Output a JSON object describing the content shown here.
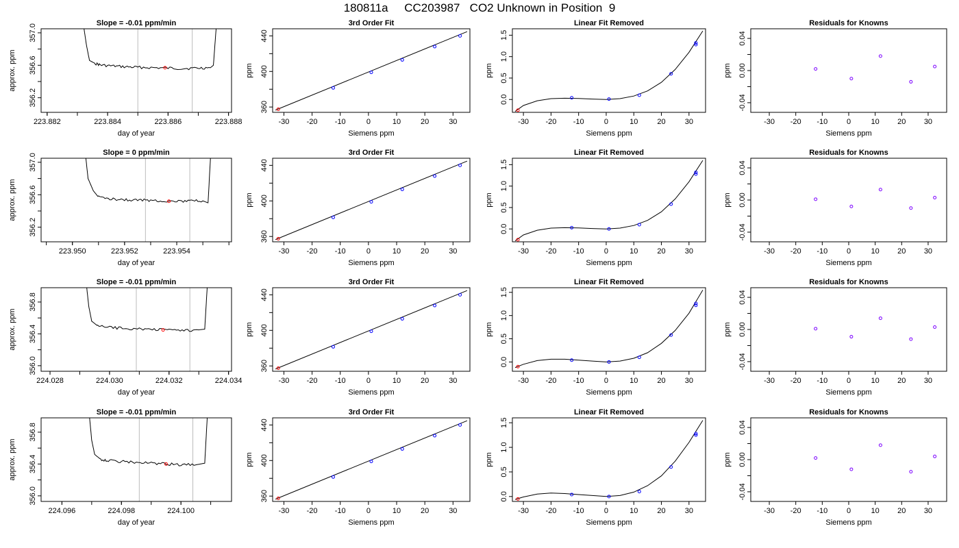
{
  "figure_title": "180811a     CC203987   CO2 Unknown in Position  9",
  "colors": {
    "line": "#000000",
    "vline": "#bbbbbb",
    "red_point": "#ff0000",
    "blue_point": "#0000ff",
    "resid_point": "#7b00ff"
  },
  "chart_data": [
    {
      "type": "line",
      "panel": "timeseries",
      "title": "Slope =  -0.01  ppm/min",
      "xlabel": "day of year",
      "ylabel": "approx. ppm",
      "xlim": [
        223.8818,
        223.8881
      ],
      "ylim": [
        356.02,
        357.05
      ],
      "xticks": [
        "223.882",
        "223.884",
        "223.886",
        "223.888"
      ],
      "yticks": [
        "356.2",
        "356.6",
        "357.0"
      ],
      "ytick_values": [
        356.2,
        356.6,
        357.0
      ],
      "vlines": [
        223.885,
        223.8868
      ],
      "series": [
        {
          "x": [
            223.8832,
            223.8833,
            223.8834,
            223.8836,
            223.8838,
            223.8842,
            223.8846,
            223.885,
            223.8855,
            223.886,
            223.8865,
            223.887,
            223.8874,
            223.8875,
            223.8876
          ],
          "y": [
            357.1,
            356.85,
            356.66,
            356.62,
            356.6,
            356.59,
            356.58,
            356.575,
            356.57,
            356.565,
            356.56,
            356.565,
            356.57,
            356.6,
            357.1
          ]
        }
      ],
      "red_point": [
        223.8859,
        356.57
      ]
    },
    {
      "type": "scatter",
      "panel": "fit",
      "title": "3rd Order Fit",
      "xlabel": "Siemens ppm",
      "ylabel": "ppm",
      "xlim": [
        -34,
        36
      ],
      "ylim": [
        354,
        448
      ],
      "xticks": [
        "-30",
        "-20",
        "-10",
        "0",
        "10",
        "20",
        "30"
      ],
      "xtick_values": [
        -30,
        -20,
        -10,
        0,
        10,
        20,
        30
      ],
      "yticks": [
        "360",
        "400",
        "440"
      ],
      "ytick_values": [
        360,
        400,
        440
      ],
      "fit_line": [
        [
          -33,
          356.5
        ],
        [
          35,
          444.8
        ]
      ],
      "points": {
        "x": [
          -12.5,
          1,
          12,
          23.5,
          32.5
        ],
        "y": [
          381.5,
          399,
          413,
          428,
          440
        ]
      },
      "red_point": [
        -32,
        357.5
      ]
    },
    {
      "type": "scatter",
      "panel": "linear-removed",
      "title": "Linear Fit Removed",
      "xlabel": "Siemens ppm",
      "ylabel": "ppm",
      "xlim": [
        -34,
        36
      ],
      "ylim": [
        -0.3,
        1.65
      ],
      "xticks": [
        "-30",
        "-20",
        "-10",
        "0",
        "10",
        "20",
        "30"
      ],
      "xtick_values": [
        -30,
        -20,
        -10,
        0,
        10,
        20,
        30
      ],
      "yticks": [
        "0.0",
        "0.5",
        "1.0",
        "1.5"
      ],
      "ytick_values": [
        0,
        0.5,
        1.0,
        1.5
      ],
      "curve": {
        "x": [
          -33,
          -30,
          -25,
          -20,
          -15,
          -10,
          -5,
          0,
          5,
          10,
          15,
          20,
          25,
          30,
          35
        ],
        "y": [
          -0.28,
          -0.14,
          -0.03,
          0.02,
          0.03,
          0.025,
          0.01,
          0.0,
          0.02,
          0.08,
          0.2,
          0.4,
          0.7,
          1.1,
          1.6
        ]
      },
      "points": {
        "x": [
          -12.5,
          1,
          12,
          23.5,
          32.5,
          32.5
        ],
        "y": [
          0.04,
          0.01,
          0.1,
          0.6,
          1.28,
          1.32
        ]
      },
      "red_point": [
        -32,
        -0.25
      ]
    },
    {
      "type": "scatter",
      "panel": "residuals",
      "title": "Residuals for Knowns",
      "xlabel": "Siemens ppm",
      "ylabel": "ppm",
      "xlim": [
        -37,
        37
      ],
      "ylim": [
        -0.052,
        0.052
      ],
      "xticks": [
        "-30",
        "-20",
        "-10",
        "0",
        "10",
        "20",
        "30"
      ],
      "xtick_values": [
        -30,
        -20,
        -10,
        0,
        10,
        20,
        30
      ],
      "yticks": [
        "-0.04",
        "0.00",
        "0.04"
      ],
      "ytick_values": [
        -0.04,
        0.0,
        0.04
      ],
      "points": {
        "x": [
          -12.5,
          1,
          12,
          23.5,
          32.5
        ],
        "y": [
          0.002,
          -0.01,
          0.018,
          -0.014,
          0.005
        ]
      }
    },
    {
      "type": "line",
      "panel": "timeseries",
      "title": "Slope =  0  ppm/min",
      "xlabel": "day of year",
      "ylabel": "approx. ppm",
      "xlim": [
        223.9488,
        223.9561
      ],
      "ylim": [
        356.02,
        357.05
      ],
      "xticks": [
        "223.950",
        "223.952",
        "223.954"
      ],
      "yticks": [
        "356.2",
        "356.6",
        "357.0"
      ],
      "ytick_values": [
        356.2,
        356.6,
        357.0
      ],
      "vlines": [
        223.9528,
        223.9545
      ],
      "series": [
        {
          "x": [
            223.9505,
            223.9506,
            223.9508,
            223.951,
            223.9515,
            223.952,
            223.9525,
            223.953,
            223.9535,
            223.954,
            223.9545,
            223.955,
            223.9552,
            223.9553
          ],
          "y": [
            357.1,
            356.8,
            356.65,
            356.57,
            356.55,
            356.54,
            356.535,
            356.53,
            356.525,
            356.52,
            356.52,
            356.525,
            356.5,
            357.1
          ]
        }
      ],
      "red_point": [
        223.9537,
        356.52
      ]
    },
    {
      "type": "scatter",
      "panel": "fit",
      "title": "3rd Order Fit",
      "xlabel": "Siemens ppm",
      "ylabel": "ppm",
      "xlim": [
        -34,
        36
      ],
      "ylim": [
        354,
        448
      ],
      "xticks": [
        "-30",
        "-20",
        "-10",
        "0",
        "10",
        "20",
        "30"
      ],
      "xtick_values": [
        -30,
        -20,
        -10,
        0,
        10,
        20,
        30
      ],
      "yticks": [
        "360",
        "400",
        "440"
      ],
      "ytick_values": [
        360,
        400,
        440
      ],
      "fit_line": [
        [
          -33,
          356.5
        ],
        [
          35,
          444.8
        ]
      ],
      "points": {
        "x": [
          -12.5,
          1,
          12,
          23.5,
          32.5
        ],
        "y": [
          381.5,
          399,
          413,
          428,
          440
        ]
      },
      "red_point": [
        -32,
        357.5
      ]
    },
    {
      "type": "scatter",
      "panel": "linear-removed",
      "title": "Linear Fit Removed",
      "xlabel": "Siemens ppm",
      "ylabel": "ppm",
      "xlim": [
        -34,
        36
      ],
      "ylim": [
        -0.3,
        1.65
      ],
      "xticks": [
        "-30",
        "-20",
        "-10",
        "0",
        "10",
        "20",
        "30"
      ],
      "xtick_values": [
        -30,
        -20,
        -10,
        0,
        10,
        20,
        30
      ],
      "yticks": [
        "0.0",
        "0.5",
        "1.0",
        "1.5"
      ],
      "ytick_values": [
        0,
        0.5,
        1.0,
        1.5
      ],
      "curve": {
        "x": [
          -33,
          -30,
          -25,
          -20,
          -15,
          -10,
          -5,
          0,
          5,
          10,
          15,
          20,
          25,
          30,
          35
        ],
        "y": [
          -0.28,
          -0.14,
          -0.03,
          0.02,
          0.03,
          0.025,
          0.01,
          0.0,
          0.02,
          0.08,
          0.2,
          0.4,
          0.7,
          1.1,
          1.6
        ]
      },
      "points": {
        "x": [
          -12.5,
          1,
          12,
          23.5,
          32.5,
          32.5
        ],
        "y": [
          0.03,
          0.0,
          0.1,
          0.58,
          1.28,
          1.32
        ]
      },
      "red_point": [
        -32,
        -0.25
      ]
    },
    {
      "type": "scatter",
      "panel": "residuals",
      "title": "Residuals for Knowns",
      "xlabel": "Siemens ppm",
      "ylabel": "ppm",
      "xlim": [
        -37,
        37
      ],
      "ylim": [
        -0.052,
        0.052
      ],
      "xticks": [
        "-30",
        "-20",
        "-10",
        "0",
        "10",
        "20",
        "30"
      ],
      "xtick_values": [
        -30,
        -20,
        -10,
        0,
        10,
        20,
        30
      ],
      "yticks": [
        "-0.04",
        "0.00",
        "0.04"
      ],
      "ytick_values": [
        -0.04,
        0.0,
        0.04
      ],
      "points": {
        "x": [
          -12.5,
          1,
          12,
          23.5,
          32.5
        ],
        "y": [
          0.001,
          -0.008,
          0.013,
          -0.01,
          0.003
        ]
      }
    },
    {
      "type": "line",
      "panel": "timeseries",
      "title": "Slope =  -0.01  ppm/min",
      "xlabel": "day of year",
      "ylabel": "approx. ppm",
      "xlim": [
        224.0277,
        224.0341
      ],
      "ylim": [
        355.93,
        356.98
      ],
      "xticks": [
        "224.028",
        "224.030",
        "224.032",
        "224.034"
      ],
      "yticks": [
        "356.0",
        "356.4",
        "356.8"
      ],
      "ytick_values": [
        356.0,
        356.4,
        356.8
      ],
      "vlines": [
        224.0309,
        224.0327
      ],
      "series": [
        {
          "x": [
            224.0292,
            224.0293,
            224.0294,
            224.0296,
            224.03,
            224.0305,
            224.031,
            224.0315,
            224.032,
            224.0325,
            224.033,
            224.0332,
            224.0333
          ],
          "y": [
            357.1,
            356.75,
            356.56,
            356.5,
            356.48,
            356.47,
            356.46,
            356.455,
            356.45,
            356.445,
            356.45,
            356.46,
            357.1
          ]
        }
      ],
      "red_point": [
        224.0318,
        356.45
      ]
    },
    {
      "type": "scatter",
      "panel": "fit",
      "title": "3rd Order Fit",
      "xlabel": "Siemens ppm",
      "ylabel": "ppm",
      "xlim": [
        -34,
        36
      ],
      "ylim": [
        354,
        448
      ],
      "xticks": [
        "-30",
        "-20",
        "-10",
        "0",
        "10",
        "20",
        "30"
      ],
      "xtick_values": [
        -30,
        -20,
        -10,
        0,
        10,
        20,
        30
      ],
      "yticks": [
        "360",
        "400",
        "440"
      ],
      "ytick_values": [
        360,
        400,
        440
      ],
      "fit_line": [
        [
          -33,
          356.5
        ],
        [
          35,
          444.8
        ]
      ],
      "points": {
        "x": [
          -12.5,
          1,
          12,
          23.5,
          32.5
        ],
        "y": [
          381.5,
          399,
          413,
          428,
          440
        ]
      },
      "red_point": [
        -32,
        357.5
      ]
    },
    {
      "type": "scatter",
      "panel": "linear-removed",
      "title": "Linear Fit Removed",
      "xlabel": "Siemens ppm",
      "ylabel": "ppm",
      "xlim": [
        -34,
        36
      ],
      "ylim": [
        -0.2,
        1.6
      ],
      "xticks": [
        "-30",
        "-20",
        "-10",
        "0",
        "10",
        "20",
        "30"
      ],
      "xtick_values": [
        -30,
        -20,
        -10,
        0,
        10,
        20,
        30
      ],
      "yticks": [
        "0.0",
        "0.5",
        "1.0",
        "1.5"
      ],
      "ytick_values": [
        0,
        0.5,
        1.0,
        1.5
      ],
      "curve": {
        "x": [
          -33,
          -30,
          -25,
          -20,
          -15,
          -10,
          -5,
          0,
          5,
          10,
          15,
          20,
          25,
          30,
          35
        ],
        "y": [
          -0.12,
          -0.05,
          0.03,
          0.06,
          0.06,
          0.04,
          0.02,
          0.0,
          0.02,
          0.08,
          0.2,
          0.4,
          0.68,
          1.05,
          1.55
        ]
      },
      "points": {
        "x": [
          -12.5,
          1,
          12,
          23.5,
          32.5,
          32.5
        ],
        "y": [
          0.04,
          0.0,
          0.1,
          0.58,
          1.22,
          1.26
        ]
      },
      "red_point": [
        -32,
        -0.1
      ]
    },
    {
      "type": "scatter",
      "panel": "residuals",
      "title": "Residuals for Knowns",
      "xlabel": "Siemens ppm",
      "ylabel": "ppm",
      "xlim": [
        -37,
        37
      ],
      "ylim": [
        -0.052,
        0.052
      ],
      "xticks": [
        "-30",
        "-20",
        "-10",
        "0",
        "10",
        "20",
        "30"
      ],
      "xtick_values": [
        -30,
        -20,
        -10,
        0,
        10,
        20,
        30
      ],
      "yticks": [
        "-0.04",
        "0.00",
        "0.04"
      ],
      "ytick_values": [
        -0.04,
        0.0,
        0.04
      ],
      "points": {
        "x": [
          -12.5,
          1,
          12,
          23.5,
          32.5
        ],
        "y": [
          0.001,
          -0.009,
          0.014,
          -0.012,
          0.003
        ]
      }
    },
    {
      "type": "line",
      "panel": "timeseries",
      "title": "Slope =  -0.01  ppm/min",
      "xlabel": "day of year",
      "ylabel": "approx. ppm",
      "xlim": [
        224.0953,
        224.1017
      ],
      "ylim": [
        355.93,
        356.98
      ],
      "xticks": [
        "224.096",
        "224.098",
        "224.100"
      ],
      "yticks": [
        "356.0",
        "356.4",
        "356.8"
      ],
      "ytick_values": [
        356.0,
        356.4,
        356.8
      ],
      "vlines": [
        224.0986,
        224.1004
      ],
      "series": [
        {
          "x": [
            224.0969,
            224.097,
            224.0971,
            224.0973,
            224.0976,
            224.098,
            224.0985,
            224.099,
            224.0995,
            224.1,
            224.1005,
            224.1008,
            224.1009
          ],
          "y": [
            357.1,
            356.7,
            356.52,
            356.46,
            356.44,
            356.43,
            356.42,
            356.41,
            356.4,
            356.39,
            356.39,
            356.41,
            357.1
          ]
        }
      ],
      "red_point": [
        224.0995,
        356.4
      ]
    },
    {
      "type": "scatter",
      "panel": "fit",
      "title": "3rd Order Fit",
      "xlabel": "Siemens ppm",
      "ylabel": "ppm",
      "xlim": [
        -34,
        36
      ],
      "ylim": [
        354,
        448
      ],
      "xticks": [
        "-30",
        "-20",
        "-10",
        "0",
        "10",
        "20",
        "30"
      ],
      "xtick_values": [
        -30,
        -20,
        -10,
        0,
        10,
        20,
        30
      ],
      "yticks": [
        "360",
        "400",
        "440"
      ],
      "ytick_values": [
        360,
        400,
        440
      ],
      "fit_line": [
        [
          -33,
          356.5
        ],
        [
          35,
          444.8
        ]
      ],
      "points": {
        "x": [
          -12.5,
          1,
          12,
          23.5,
          32.5
        ],
        "y": [
          381.5,
          399,
          413,
          428,
          440
        ]
      },
      "red_point": [
        -32,
        357.5
      ]
    },
    {
      "type": "scatter",
      "panel": "linear-removed",
      "title": "Linear Fit Removed",
      "xlabel": "Siemens ppm",
      "ylabel": "ppm",
      "xlim": [
        -34,
        36
      ],
      "ylim": [
        -0.1,
        1.6
      ],
      "xticks": [
        "-30",
        "-20",
        "-10",
        "0",
        "10",
        "20",
        "30"
      ],
      "xtick_values": [
        -30,
        -20,
        -10,
        0,
        10,
        20,
        30
      ],
      "yticks": [
        "0.0",
        "0.5",
        "1.0",
        "1.5"
      ],
      "ytick_values": [
        0,
        0.5,
        1.0,
        1.5
      ],
      "curve": {
        "x": [
          -33,
          -30,
          -25,
          -20,
          -15,
          -10,
          -5,
          0,
          5,
          10,
          15,
          20,
          25,
          30,
          35
        ],
        "y": [
          -0.06,
          -0.01,
          0.05,
          0.07,
          0.06,
          0.04,
          0.02,
          0.0,
          0.02,
          0.09,
          0.22,
          0.42,
          0.72,
          1.1,
          1.55
        ]
      },
      "points": {
        "x": [
          -12.5,
          1,
          12,
          23.5,
          32.5,
          32.5
        ],
        "y": [
          0.04,
          0.0,
          0.1,
          0.6,
          1.25,
          1.28
        ]
      },
      "red_point": [
        -32,
        -0.05
      ]
    },
    {
      "type": "scatter",
      "panel": "residuals",
      "title": "Residuals for Knowns",
      "xlabel": "Siemens ppm",
      "ylabel": "ppm",
      "xlim": [
        -37,
        37
      ],
      "ylim": [
        -0.052,
        0.052
      ],
      "xticks": [
        "-30",
        "-20",
        "-10",
        "0",
        "10",
        "20",
        "30"
      ],
      "xtick_values": [
        -30,
        -20,
        -10,
        0,
        10,
        20,
        30
      ],
      "yticks": [
        "-0.04",
        "0.00",
        "0.04"
      ],
      "ytick_values": [
        -0.04,
        0.0,
        0.04
      ],
      "points": {
        "x": [
          -12.5,
          1,
          12,
          23.5,
          32.5
        ],
        "y": [
          0.002,
          -0.012,
          0.018,
          -0.015,
          0.004
        ]
      }
    }
  ]
}
